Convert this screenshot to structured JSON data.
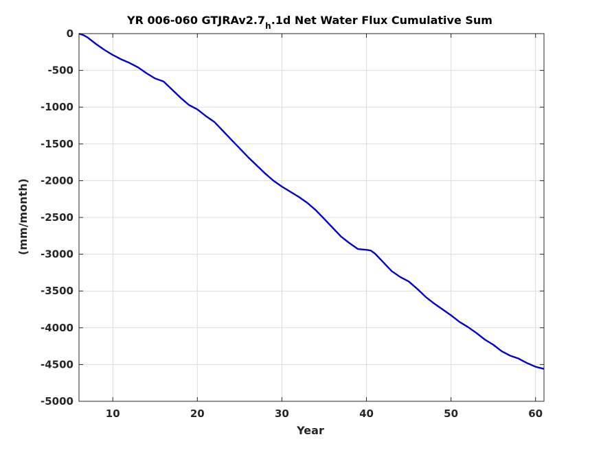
{
  "chart_data": {
    "type": "line",
    "title": "YR 006-060 GTJRAv2.7",
    "title_subscript": "h",
    "title_suffix": ".1d Net Water Flux Cumulative Sum",
    "xlabel": "Year",
    "ylabel": "(mm/month)",
    "xlim": [
      6,
      61
    ],
    "ylim": [
      -5000,
      0
    ],
    "xticks": [
      10,
      20,
      30,
      40,
      50,
      60
    ],
    "yticks": [
      0,
      -500,
      -1000,
      -1500,
      -2000,
      -2500,
      -3000,
      -3500,
      -4000,
      -4500,
      -5000
    ],
    "grid": true,
    "line_color": "#0000cc",
    "series": [
      {
        "x": [
          6,
          6.5,
          7,
          8,
          9,
          10,
          11,
          12,
          13,
          14,
          15,
          16,
          17,
          18,
          19,
          20,
          21,
          22,
          23,
          24,
          25,
          26,
          27,
          28,
          29,
          30,
          31,
          32,
          33,
          34,
          35,
          36,
          37,
          38,
          39,
          40,
          40.5,
          41,
          42,
          43,
          44,
          45,
          46,
          47,
          48,
          49,
          50,
          51,
          52,
          53,
          54,
          55,
          56,
          57,
          58,
          59,
          60,
          61
        ],
        "y": [
          0,
          -20,
          -50,
          -140,
          -220,
          -290,
          -350,
          -400,
          -460,
          -540,
          -610,
          -650,
          -760,
          -870,
          -970,
          -1030,
          -1120,
          -1200,
          -1320,
          -1440,
          -1560,
          -1680,
          -1790,
          -1900,
          -2000,
          -2080,
          -2150,
          -2220,
          -2300,
          -2400,
          -2520,
          -2640,
          -2760,
          -2850,
          -2930,
          -2940,
          -2950,
          -2990,
          -3110,
          -3230,
          -3310,
          -3370,
          -3470,
          -3580,
          -3670,
          -3750,
          -3830,
          -3920,
          -3990,
          -4070,
          -4160,
          -4230,
          -4320,
          -4380,
          -4420,
          -4480,
          -4530,
          -4560
        ]
      }
    ]
  }
}
